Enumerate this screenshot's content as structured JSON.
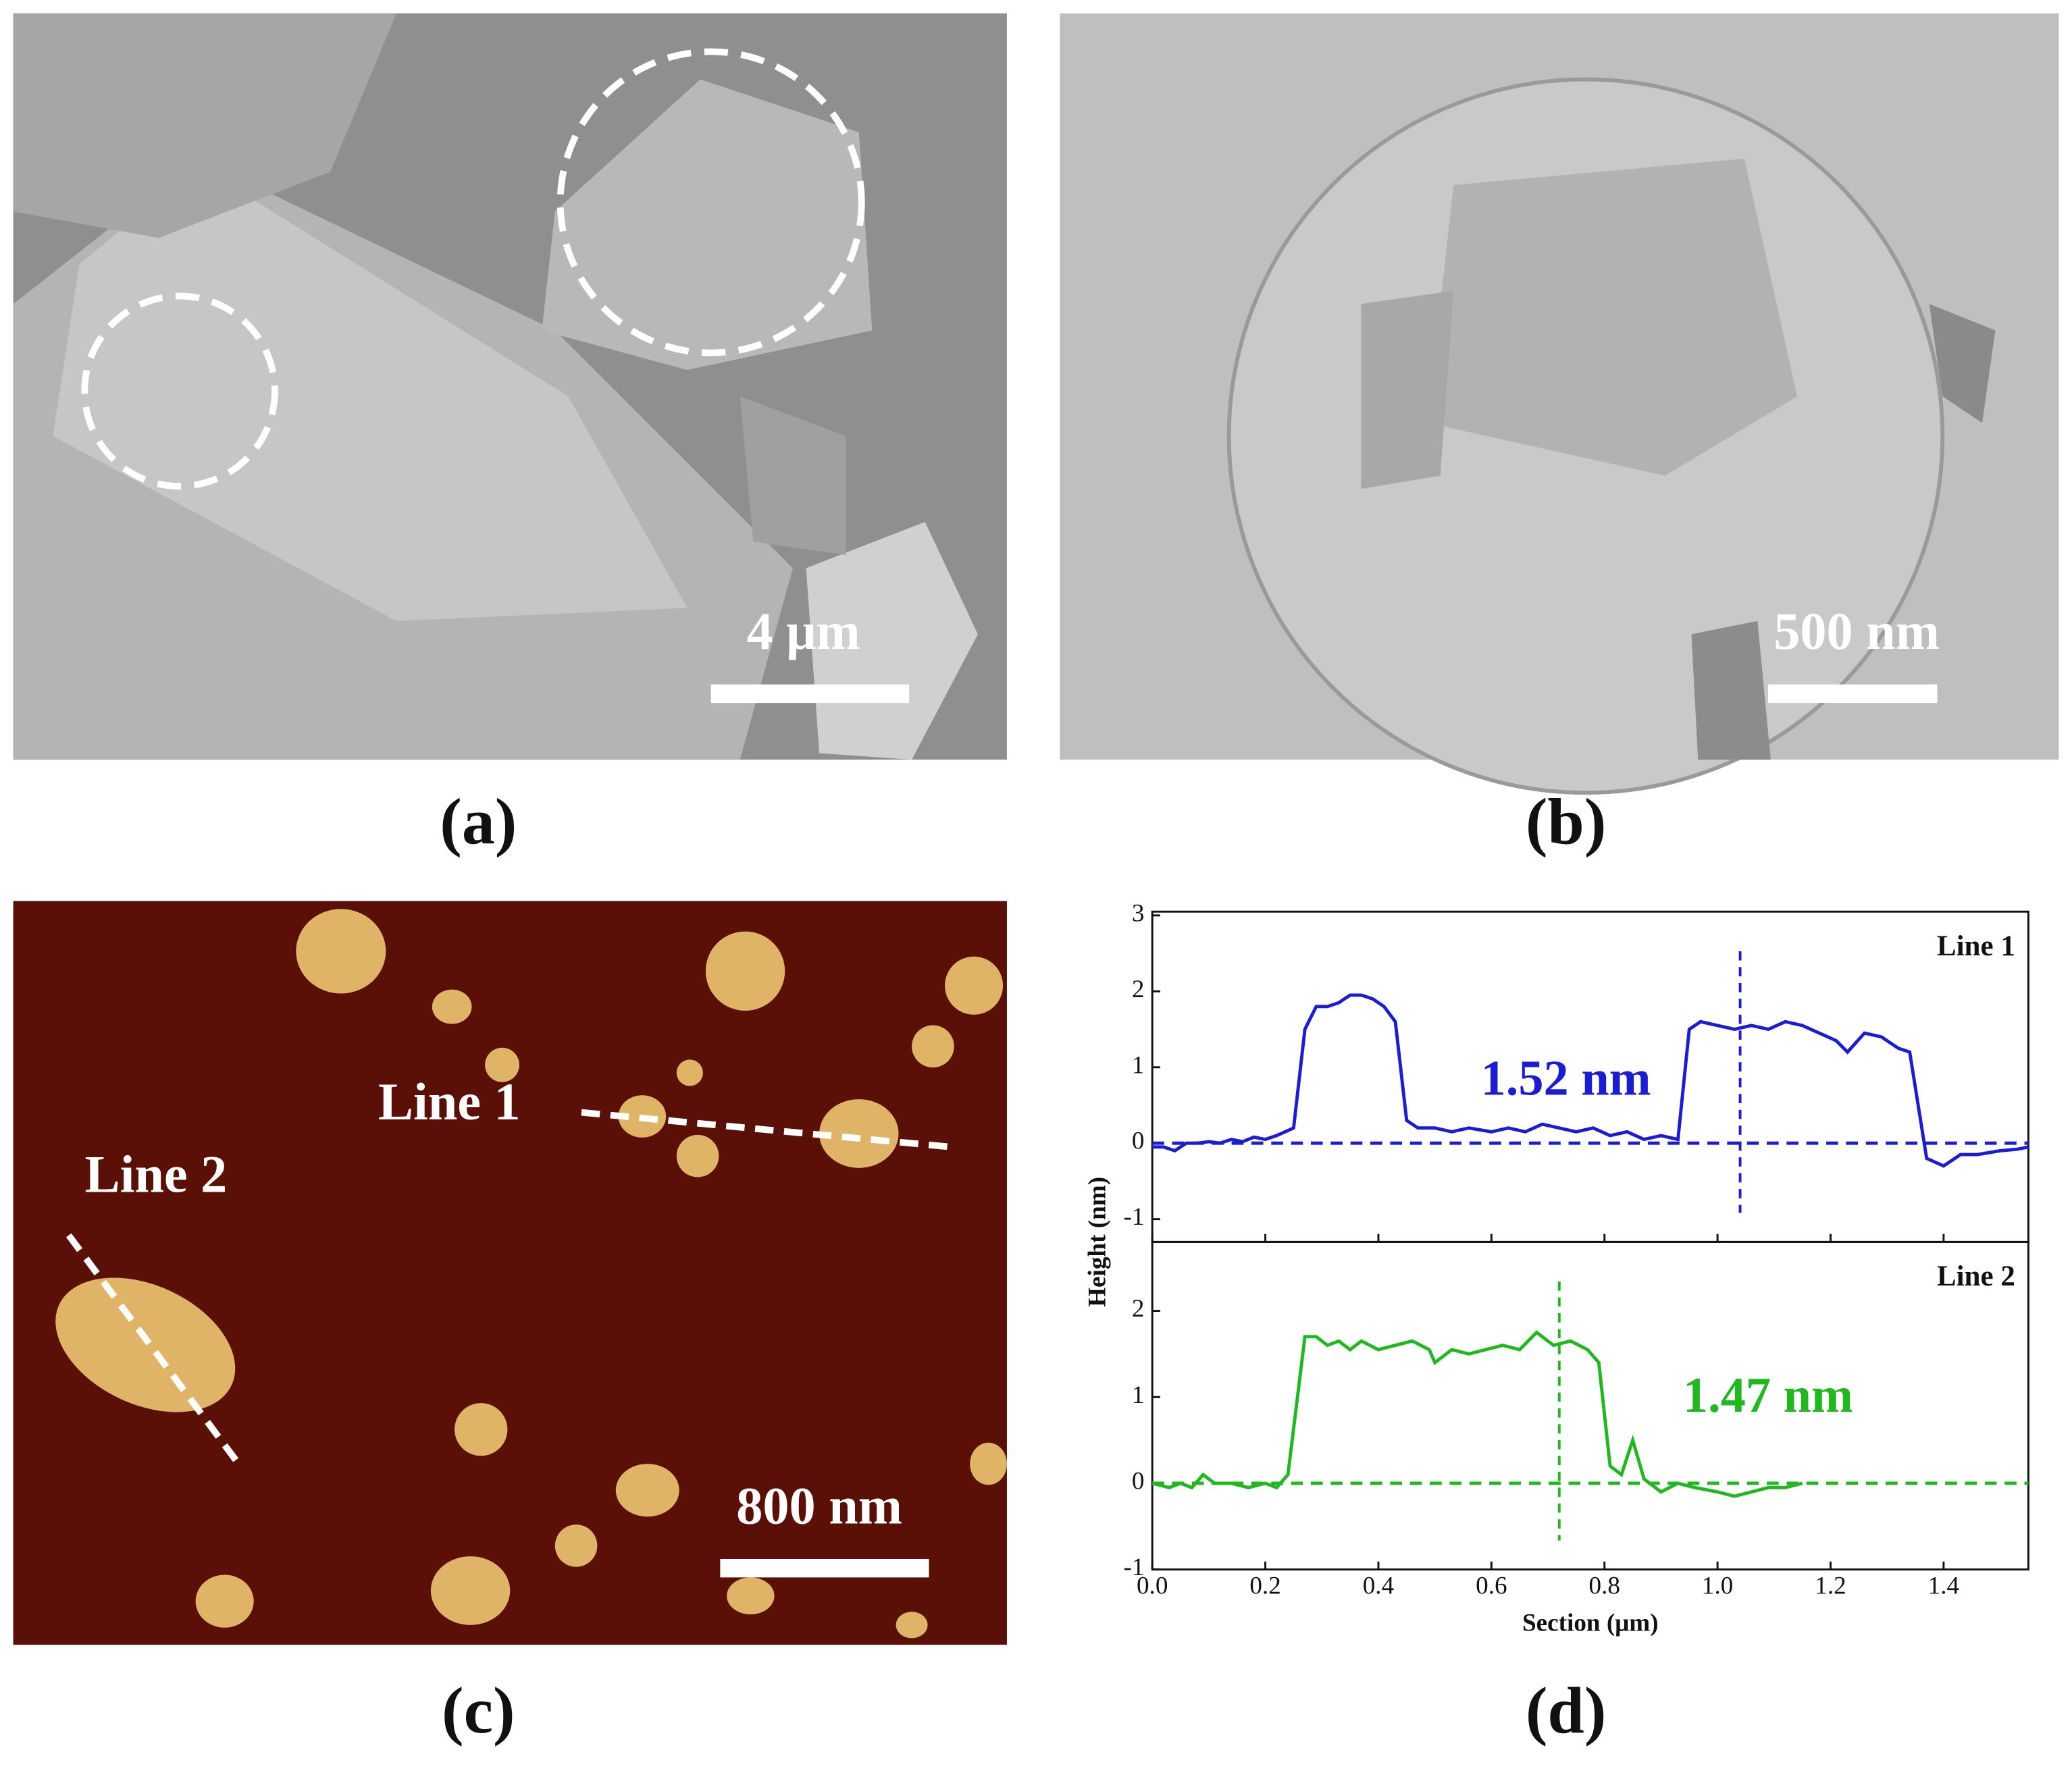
{
  "panels": [
    {
      "label": "(a)",
      "scale_bar": "4 μm"
    },
    {
      "label": "(b)",
      "scale_bar": "500 nm"
    },
    {
      "label": "(c)",
      "scale_bar": "800 nm",
      "lines": [
        "Line 1",
        "Line 2"
      ]
    },
    {
      "label": "(d)"
    }
  ],
  "chart_data": [
    {
      "type": "line",
      "ylabel": "Height (nm)",
      "x": [
        0.0,
        0.02,
        0.04,
        0.06,
        0.08,
        0.1,
        0.12,
        0.14,
        0.16,
        0.18,
        0.2,
        0.22,
        0.25,
        0.27,
        0.29,
        0.31,
        0.33,
        0.35,
        0.37,
        0.39,
        0.41,
        0.43,
        0.45,
        0.47,
        0.5,
        0.53,
        0.56,
        0.6,
        0.63,
        0.66,
        0.69,
        0.72,
        0.75,
        0.78,
        0.81,
        0.84,
        0.87,
        0.9,
        0.93,
        0.95,
        0.97,
        1.0,
        1.03,
        1.06,
        1.09,
        1.12,
        1.15,
        1.18,
        1.21,
        1.23,
        1.26,
        1.29,
        1.32,
        1.34,
        1.37,
        1.4,
        1.43,
        1.46,
        1.5,
        1.53,
        1.55
      ],
      "series": [
        {
          "name": "Line 1",
          "color": "#1c1cd4",
          "values": [
            -0.05,
            -0.05,
            -0.1,
            0.0,
            0.0,
            0.02,
            0.0,
            0.05,
            0.02,
            0.08,
            0.05,
            0.1,
            0.2,
            1.5,
            1.8,
            1.8,
            1.85,
            1.95,
            1.95,
            1.9,
            1.8,
            1.6,
            0.3,
            0.2,
            0.2,
            0.15,
            0.2,
            0.15,
            0.2,
            0.15,
            0.25,
            0.2,
            0.15,
            0.2,
            0.1,
            0.15,
            0.05,
            0.1,
            0.05,
            1.5,
            1.6,
            1.55,
            1.5,
            1.55,
            1.5,
            1.6,
            1.55,
            1.45,
            1.35,
            1.2,
            1.45,
            1.4,
            1.25,
            1.2,
            -0.2,
            -0.3,
            -0.15,
            -0.15,
            -0.1,
            -0.08,
            -0.05
          ]
        }
      ],
      "annotation": "1.52 nm",
      "marker_x": 1.04,
      "xlim": [
        0,
        1.55
      ],
      "ylim": [
        -1.3,
        3.05
      ],
      "yticks": [
        -1,
        0,
        1,
        2,
        3
      ]
    },
    {
      "type": "line",
      "xlabel": "Section (μm)",
      "x": [
        0.0,
        0.03,
        0.05,
        0.07,
        0.09,
        0.11,
        0.14,
        0.17,
        0.2,
        0.22,
        0.24,
        0.27,
        0.29,
        0.31,
        0.33,
        0.35,
        0.37,
        0.4,
        0.43,
        0.46,
        0.49,
        0.5,
        0.53,
        0.56,
        0.59,
        0.62,
        0.65,
        0.68,
        0.71,
        0.74,
        0.77,
        0.79,
        0.81,
        0.83,
        0.85,
        0.87,
        0.9,
        0.93,
        0.96,
        1.0,
        1.03,
        1.06,
        1.09,
        1.12,
        1.15
      ],
      "series": [
        {
          "name": "Line 2",
          "color": "#1fb81f",
          "values": [
            0.0,
            -0.05,
            0.0,
            -0.05,
            0.1,
            0.0,
            0.0,
            -0.05,
            0.0,
            -0.05,
            0.1,
            1.7,
            1.7,
            1.6,
            1.65,
            1.55,
            1.65,
            1.55,
            1.6,
            1.65,
            1.55,
            1.4,
            1.55,
            1.5,
            1.55,
            1.6,
            1.55,
            1.75,
            1.6,
            1.65,
            1.55,
            1.4,
            0.2,
            0.1,
            0.5,
            0.05,
            -0.1,
            0.0,
            -0.05,
            -0.1,
            -0.15,
            -0.1,
            -0.05,
            -0.05,
            0.0
          ]
        }
      ],
      "annotation": "1.47 nm",
      "marker_x": 0.72,
      "xlim": [
        0,
        1.55
      ],
      "ylim": [
        -1,
        2.8
      ],
      "yticks": [
        -1,
        0,
        1,
        2
      ],
      "xticks": [
        {
          "value": 0,
          "label": "0.0"
        },
        0.2,
        0.4,
        0.6,
        0.8,
        {
          "value": 1,
          "label": "1.0"
        },
        1.2,
        1.4
      ]
    }
  ]
}
